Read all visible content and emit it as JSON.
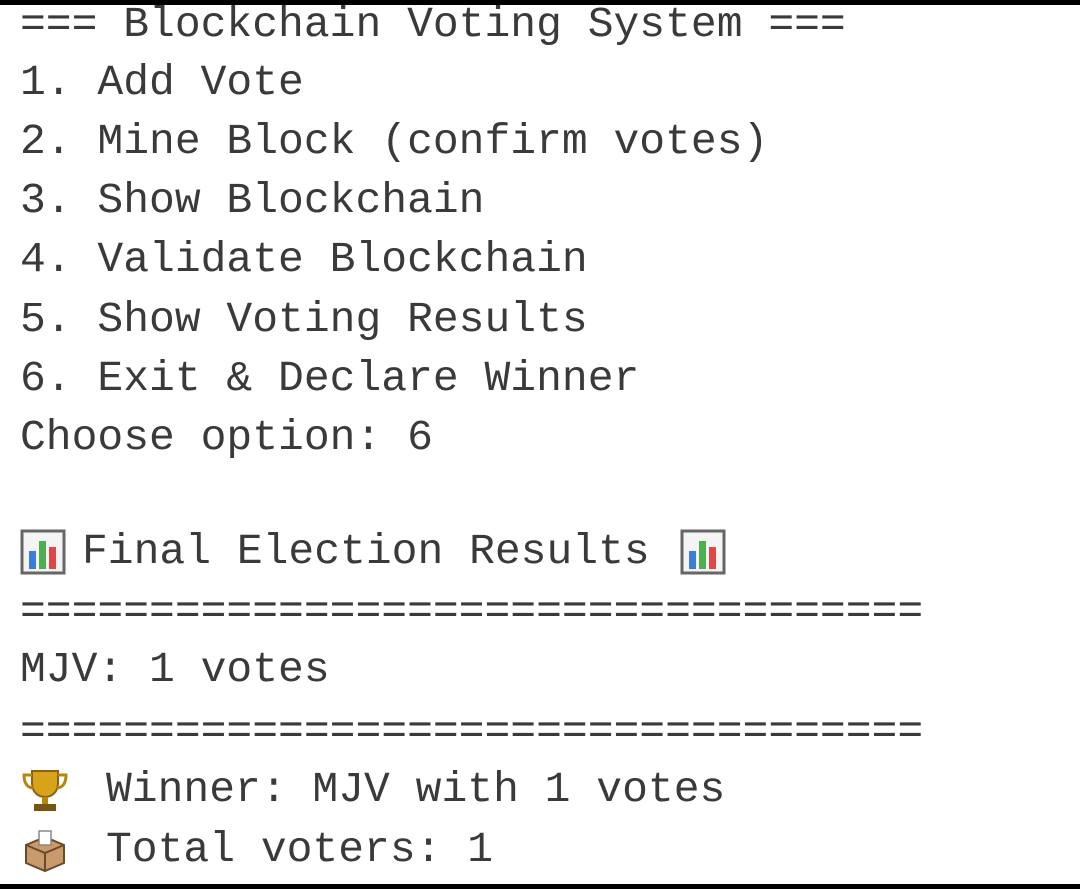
{
  "menu": {
    "title": "=== Blockchain Voting System ===",
    "options": [
      "1. Add Vote",
      "2. Mine Block (confirm votes)",
      "3. Show Blockchain",
      "4. Validate Blockchain",
      "5. Show Voting Results",
      "6. Exit & Declare Winner"
    ],
    "prompt": "Choose option: 6"
  },
  "results": {
    "heading": "Final Election Results",
    "separator_top": "===================================",
    "tallies": [
      "MJV: 1 votes"
    ],
    "separator_bottom": "===================================",
    "winner": "Winner: MJV with 1 votes",
    "total": "Total voters: 1"
  }
}
